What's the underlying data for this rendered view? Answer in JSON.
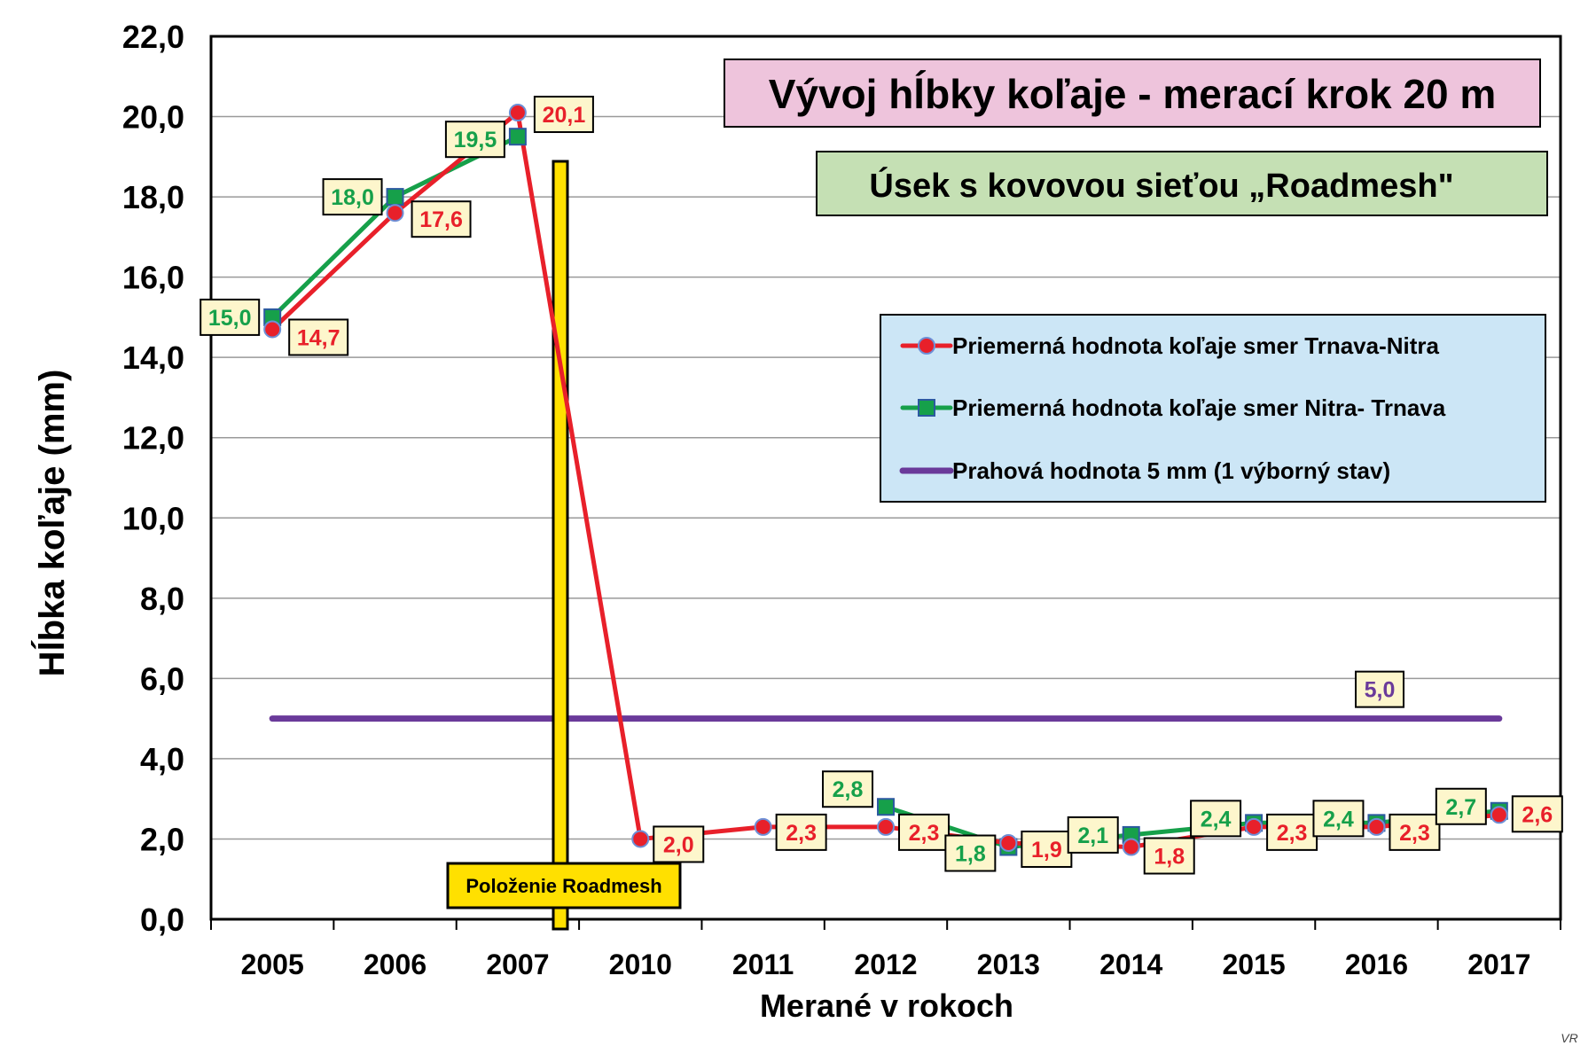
{
  "chart_data": {
    "type": "line",
    "title": "Vývoj hĺbky koľaje - merací krok 20 m",
    "subtitle": "Úsek s kovovou sieťou „Roadmesh\"",
    "xlabel": "Merané v rokoch",
    "ylabel": "Hĺbka koľaje  (mm)",
    "categories": [
      "2005",
      "2006",
      "2007",
      "2010",
      "2011",
      "2012",
      "2013",
      "2014",
      "2015",
      "2016",
      "2017"
    ],
    "ylim": [
      0,
      22
    ],
    "yticks": [
      "0,0",
      "2,0",
      "4,0",
      "6,0",
      "8,0",
      "10,0",
      "12,0",
      "14,0",
      "16,0",
      "18,0",
      "20,0",
      "22,0"
    ],
    "grid": true,
    "legend_position": "right",
    "series": [
      {
        "name": "Priemerná hodnota koľaje smer Trnava-Nitra",
        "color": "#e8202a",
        "marker": "circle",
        "values": [
          14.7,
          17.6,
          20.1,
          2.0,
          2.3,
          2.3,
          1.9,
          1.8,
          2.3,
          2.3,
          2.6
        ],
        "labels": [
          "14,7",
          "17,6",
          "20,1",
          "2,0",
          "2,3",
          "2,3",
          "1,9",
          "1,8",
          "2,3",
          "2,3",
          "2,6"
        ]
      },
      {
        "name": "Priemerná hodnota koľaje  smer Nitra- Trnava",
        "color": "#16a04a",
        "marker": "square",
        "values": [
          15.0,
          18.0,
          19.5,
          null,
          null,
          2.8,
          1.8,
          2.1,
          2.4,
          2.4,
          2.7
        ],
        "labels": [
          "15,0",
          "18,0",
          "19,5",
          null,
          null,
          "2,8",
          "1,8",
          "2,1",
          "2,4",
          "2,4",
          "2,7"
        ]
      },
      {
        "name": "Prahová hodnota  5 mm (1 výborný stav)",
        "color": "#6a3a9a",
        "marker": "none",
        "values": [
          5,
          5,
          5,
          5,
          5,
          5,
          5,
          5,
          5,
          5,
          5
        ],
        "label": "5,0"
      }
    ],
    "annotation": "Položenie Roadmesh",
    "signature": "VR"
  }
}
